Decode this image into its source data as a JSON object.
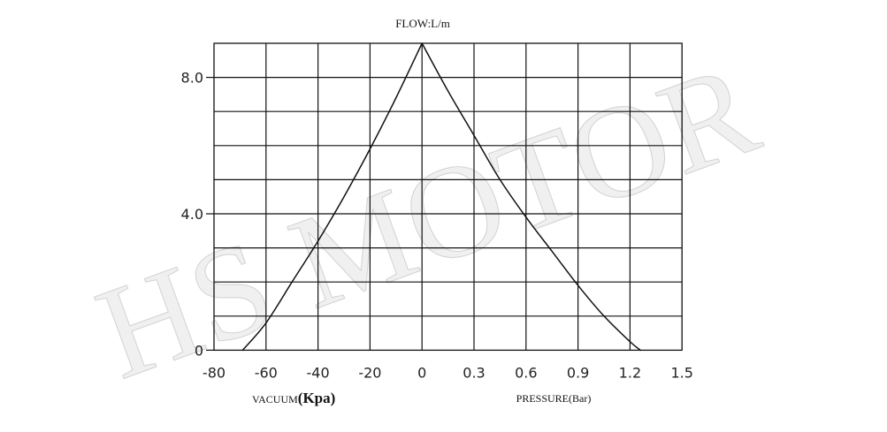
{
  "chart_data": {
    "type": "line",
    "title": "FLOW:L/m",
    "watermark_text": "HS MOTOR",
    "left_axis_label": "VACUUM(Kpa)",
    "right_axis_label": "PRESSURE(Bar)",
    "y_ticks": [
      "0",
      "4.0",
      "8.0"
    ],
    "left_x_ticks": [
      "-80",
      "-60",
      "-40",
      "-20",
      "0"
    ],
    "right_x_ticks": [
      "0.3",
      "0.6",
      "0.9",
      "1.2",
      "1.5"
    ],
    "ylim": [
      0,
      9.0
    ],
    "grid": true,
    "series": [
      {
        "axis": "vacuum",
        "x": [
          -69,
          -60,
          -50,
          -40,
          -30,
          -20,
          -10,
          0
        ],
        "values": [
          0,
          0.8,
          2.0,
          3.2,
          4.5,
          5.9,
          7.4,
          9.0
        ]
      },
      {
        "axis": "pressure",
        "x": [
          0.0,
          0.15,
          0.3,
          0.45,
          0.6,
          0.75,
          0.9,
          1.05,
          1.2,
          1.26
        ],
        "values": [
          9.0,
          7.6,
          6.3,
          5.0,
          3.9,
          2.9,
          1.9,
          1.0,
          0.25,
          0
        ]
      }
    ],
    "colors": {
      "line": "#111111",
      "grid": "#111111",
      "watermark": "#c8c8c8"
    }
  }
}
